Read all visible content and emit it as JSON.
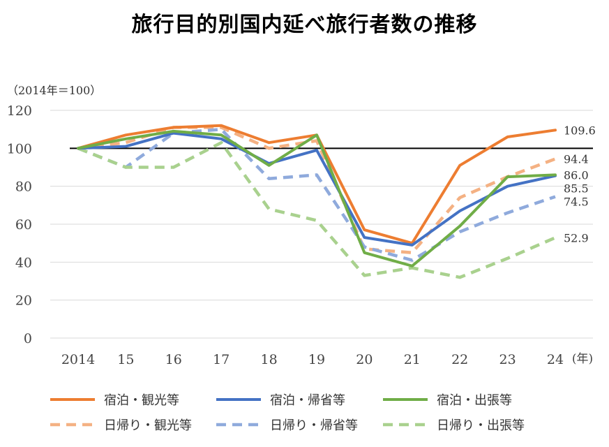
{
  "chart_data": {
    "type": "line",
    "title": "旅行目的別国内延べ旅行者数の推移",
    "unit_note": "（2014年＝100）",
    "x_axis_unit": "(年)",
    "categories": [
      "2014",
      "15",
      "16",
      "17",
      "18",
      "19",
      "20",
      "21",
      "22",
      "23",
      "24"
    ],
    "ylim": [
      0,
      120
    ],
    "yticks": [
      0,
      20,
      40,
      60,
      80,
      100,
      120
    ],
    "grid": true,
    "reference_line": 100,
    "legend_position": "bottom",
    "series": [
      {
        "name": "宿泊・観光等",
        "color": "#ED7D31",
        "dashed": false,
        "values": [
          100,
          107,
          111,
          112,
          103,
          107,
          57,
          50,
          91,
          106,
          109.6
        ],
        "end_label": "109.6"
      },
      {
        "name": "宿泊・帰省等",
        "color": "#4472C4",
        "dashed": false,
        "values": [
          100,
          101,
          108,
          105,
          92,
          99,
          53,
          49,
          67,
          80,
          85.5
        ],
        "end_label": "85.5"
      },
      {
        "name": "宿泊・出張等",
        "color": "#70AD47",
        "dashed": false,
        "values": [
          100,
          105,
          109,
          107,
          91,
          107,
          45,
          38,
          59,
          85,
          86.0
        ],
        "end_label": "86.0"
      },
      {
        "name": "日帰り・観光等",
        "color": "#F4B183",
        "dashed": true,
        "values": [
          100,
          103,
          111,
          111,
          100,
          104,
          47,
          45,
          74,
          85,
          94.4
        ],
        "end_label": "94.4"
      },
      {
        "name": "日帰り・帰省等",
        "color": "#8FAADC",
        "dashed": true,
        "values": [
          100,
          90,
          108,
          110,
          84,
          86,
          48,
          41,
          56,
          66,
          74.5
        ],
        "end_label": "74.5"
      },
      {
        "name": "日帰り・出張等",
        "color": "#A9D18E",
        "dashed": true,
        "values": [
          100,
          90,
          90,
          103,
          68,
          62,
          33,
          37,
          32,
          42,
          52.9
        ],
        "end_label": "52.9"
      }
    ]
  }
}
